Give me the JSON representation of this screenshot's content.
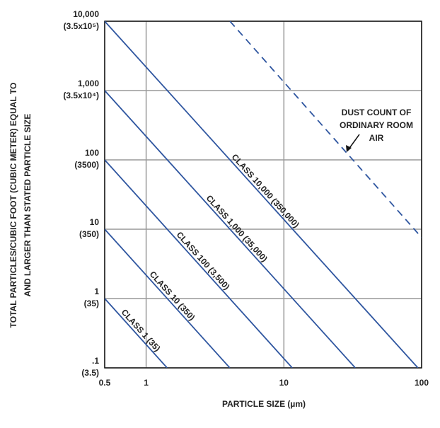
{
  "chart_data": {
    "type": "line",
    "x_label": "PARTICLE SIZE (µm)",
    "y_label": [
      "TOTAL PARTICLES/CUBIC FOOT (CUBIC METER) EQUAL TO",
      "AND LARGER THAN STATED PARTICLE SIZE"
    ],
    "log_x": true,
    "log_y": true,
    "grid": true,
    "xlim": [
      0.5,
      100
    ],
    "ylim": [
      0.1,
      10000
    ],
    "xticks": [
      0.5,
      1,
      10,
      100
    ],
    "yticks": [
      {
        "value": 0.1,
        "label": ".1"
      },
      1,
      10,
      100,
      {
        "value": 1000,
        "label": "1,000"
      },
      {
        "value": 10000,
        "label": "10,000"
      }
    ],
    "ytick_metric_labels": [
      "(3.5)",
      "(35)",
      "(350)",
      "(3500)",
      "(3.5x10⁴)",
      "(3.5x10⁵)"
    ],
    "series": [
      {
        "name": "CLASS 1 (35)",
        "color": "#2f56a0",
        "x": [
          0.5,
          1.42
        ],
        "values": [
          1,
          0.1
        ]
      },
      {
        "name": "CLASS 10 (350)",
        "color": "#2f56a0",
        "x": [
          0.5,
          4.05
        ],
        "values": [
          10,
          0.1
        ]
      },
      {
        "name": "CLASS 100 (3,500)",
        "color": "#2f56a0",
        "x": [
          0.5,
          11.5
        ],
        "values": [
          100,
          0.1
        ]
      },
      {
        "name": "CLASS 1,000 (35,000)",
        "color": "#2f56a0",
        "x": [
          0.5,
          33
        ],
        "values": [
          1000,
          0.1
        ]
      },
      {
        "name": "CLASS 10,000 (350,000)",
        "color": "#2f56a0",
        "x": [
          0.5,
          94
        ],
        "values": [
          10000,
          0.1
        ]
      },
      {
        "name": "DUST COUNT OF ORDINARY ROOM AIR",
        "color": "#2f56a0",
        "dashed": true,
        "x": [
          4.06,
          100
        ],
        "values": [
          10000,
          7.6
        ]
      }
    ],
    "annotation": [
      "DUST COUNT OF",
      "ORDINARY ROOM",
      "AIR"
    ]
  }
}
